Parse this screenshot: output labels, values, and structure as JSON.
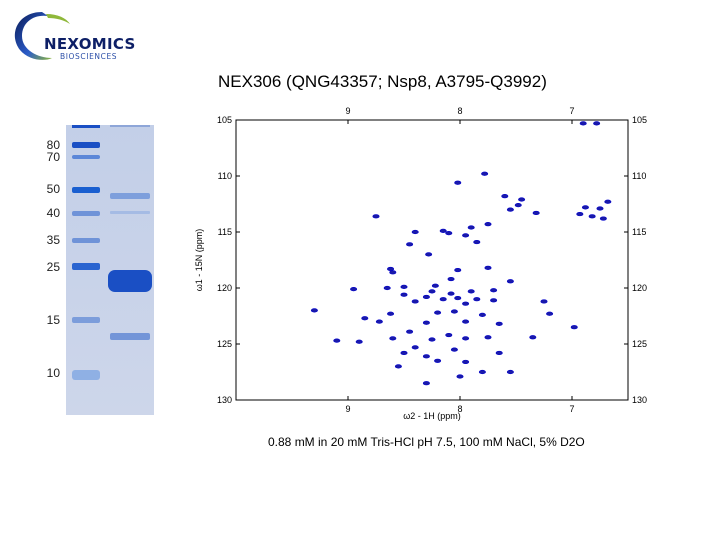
{
  "logo": {
    "wordmark": "NEXOMICS",
    "subtitle": "BIOSCIENCES"
  },
  "title": "NEX306 (QNG43357; Nsp8, A3795-Q3992)",
  "caption": "0.88 mM in 20 mM Tris-HCl pH 7.5, 100 mM NaCl, 5% D2O",
  "gel": {
    "ladder_labels": [
      "80",
      "70",
      "50",
      "40",
      "35",
      "25",
      "15",
      "10"
    ],
    "colors": {
      "background": "#c9d3e8",
      "band": "#1a4fc4"
    }
  },
  "chart_data": [
    {
      "type": "scatter",
      "subtype": "2D 1H-15N HSQC NMR spectrum",
      "xlabel": "ω2 - 1H (ppm)",
      "ylabel": "ω1 - 15N (ppm)",
      "xlim": [
        10.0,
        6.5
      ],
      "ylim": [
        105,
        130
      ],
      "x_reversed": true,
      "y_reversed": true,
      "x_ticks": [
        "9",
        "8",
        "7"
      ],
      "y_ticks": [
        "105",
        "110",
        "115",
        "120",
        "125",
        "130"
      ],
      "color": "#1a1aa8",
      "peaks": [
        {
          "x": 6.9,
          "y": 105.3
        },
        {
          "x": 6.78,
          "y": 105.3
        },
        {
          "x": 7.78,
          "y": 109.8
        },
        {
          "x": 8.02,
          "y": 110.6
        },
        {
          "x": 7.6,
          "y": 111.8
        },
        {
          "x": 7.45,
          "y": 112.1
        },
        {
          "x": 7.48,
          "y": 112.6
        },
        {
          "x": 7.55,
          "y": 113.0
        },
        {
          "x": 7.32,
          "y": 113.3
        },
        {
          "x": 6.88,
          "y": 112.8
        },
        {
          "x": 6.75,
          "y": 112.9
        },
        {
          "x": 6.68,
          "y": 112.3
        },
        {
          "x": 6.82,
          "y": 113.6
        },
        {
          "x": 6.93,
          "y": 113.4
        },
        {
          "x": 6.72,
          "y": 113.8
        },
        {
          "x": 8.75,
          "y": 113.6
        },
        {
          "x": 7.75,
          "y": 114.3
        },
        {
          "x": 7.9,
          "y": 114.6
        },
        {
          "x": 8.15,
          "y": 114.9
        },
        {
          "x": 8.1,
          "y": 115.1
        },
        {
          "x": 7.95,
          "y": 115.3
        },
        {
          "x": 8.4,
          "y": 115.0
        },
        {
          "x": 8.45,
          "y": 116.1
        },
        {
          "x": 7.85,
          "y": 115.9
        },
        {
          "x": 8.28,
          "y": 117.0
        },
        {
          "x": 8.62,
          "y": 118.3
        },
        {
          "x": 8.6,
          "y": 118.6
        },
        {
          "x": 8.02,
          "y": 118.4
        },
        {
          "x": 7.75,
          "y": 118.2
        },
        {
          "x": 8.08,
          "y": 119.2
        },
        {
          "x": 7.55,
          "y": 119.4
        },
        {
          "x": 8.22,
          "y": 119.8
        },
        {
          "x": 8.5,
          "y": 119.9
        },
        {
          "x": 8.65,
          "y": 120.0
        },
        {
          "x": 8.95,
          "y": 120.1
        },
        {
          "x": 8.25,
          "y": 120.3
        },
        {
          "x": 8.08,
          "y": 120.5
        },
        {
          "x": 7.9,
          "y": 120.3
        },
        {
          "x": 7.7,
          "y": 120.2
        },
        {
          "x": 8.5,
          "y": 120.6
        },
        {
          "x": 8.3,
          "y": 120.8
        },
        {
          "x": 8.15,
          "y": 121.0
        },
        {
          "x": 8.02,
          "y": 120.9
        },
        {
          "x": 7.85,
          "y": 121.0
        },
        {
          "x": 7.7,
          "y": 121.1
        },
        {
          "x": 8.4,
          "y": 121.2
        },
        {
          "x": 7.95,
          "y": 121.4
        },
        {
          "x": 7.25,
          "y": 121.2
        },
        {
          "x": 9.3,
          "y": 122.0
        },
        {
          "x": 8.62,
          "y": 122.3
        },
        {
          "x": 8.2,
          "y": 122.2
        },
        {
          "x": 8.05,
          "y": 122.1
        },
        {
          "x": 7.8,
          "y": 122.4
        },
        {
          "x": 7.2,
          "y": 122.3
        },
        {
          "x": 8.85,
          "y": 122.7
        },
        {
          "x": 8.72,
          "y": 123.0
        },
        {
          "x": 8.3,
          "y": 123.1
        },
        {
          "x": 7.95,
          "y": 123.0
        },
        {
          "x": 7.65,
          "y": 123.2
        },
        {
          "x": 6.98,
          "y": 123.5
        },
        {
          "x": 8.45,
          "y": 123.9
        },
        {
          "x": 8.1,
          "y": 124.2
        },
        {
          "x": 8.25,
          "y": 124.6
        },
        {
          "x": 7.95,
          "y": 124.5
        },
        {
          "x": 7.75,
          "y": 124.4
        },
        {
          "x": 7.35,
          "y": 124.4
        },
        {
          "x": 9.1,
          "y": 124.7
        },
        {
          "x": 8.9,
          "y": 124.8
        },
        {
          "x": 8.6,
          "y": 124.5
        },
        {
          "x": 8.4,
          "y": 125.3
        },
        {
          "x": 8.05,
          "y": 125.5
        },
        {
          "x": 8.5,
          "y": 125.8
        },
        {
          "x": 8.3,
          "y": 126.1
        },
        {
          "x": 7.65,
          "y": 125.8
        },
        {
          "x": 8.2,
          "y": 126.5
        },
        {
          "x": 7.95,
          "y": 126.6
        },
        {
          "x": 8.55,
          "y": 127.0
        },
        {
          "x": 7.8,
          "y": 127.5
        },
        {
          "x": 7.55,
          "y": 127.5
        },
        {
          "x": 8.0,
          "y": 127.9
        },
        {
          "x": 8.3,
          "y": 128.5
        }
      ]
    }
  ]
}
